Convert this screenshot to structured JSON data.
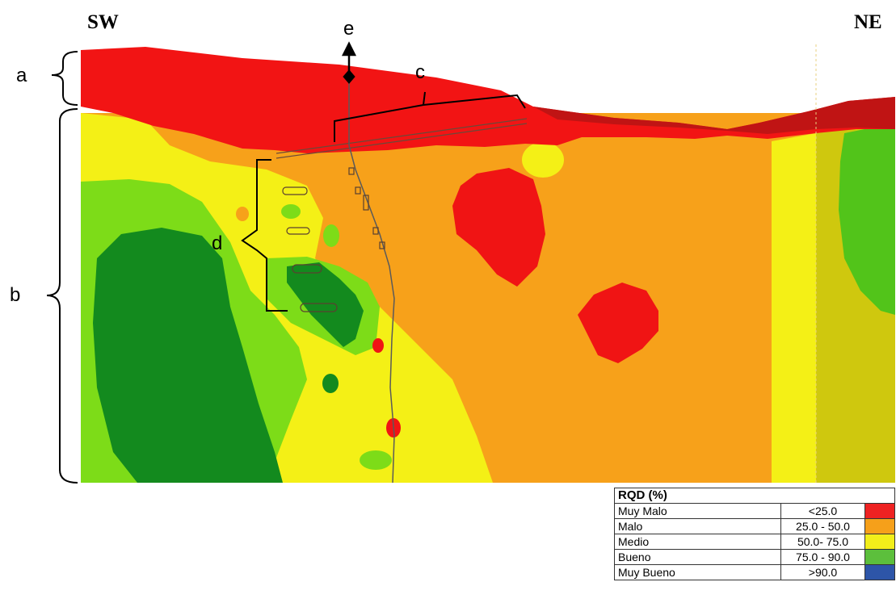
{
  "orientation": {
    "left": "SW",
    "right": "NE"
  },
  "labels": {
    "a": "a",
    "b": "b",
    "c": "c",
    "d": "d",
    "e": "e"
  },
  "legend": {
    "title": "RQD (%)",
    "rows": [
      {
        "class": "Muy Malo",
        "range": "<25.0",
        "color": "#ee2222"
      },
      {
        "class": "Malo",
        "range": "25.0 - 50.0",
        "color": "#f6a01a"
      },
      {
        "class": "Medio",
        "range": "50.0- 75.0",
        "color": "#f2ee1a"
      },
      {
        "class": "Bueno",
        "range": "75.0 - 90.0",
        "color": "#5cbf3c"
      },
      {
        "class": "Muy Bueno",
        "range": ">90.0",
        "color": "#2d55a8"
      }
    ]
  },
  "colors": {
    "muy_malo": "#f01414",
    "malo": "#f7a11a",
    "medio": "#f4f016",
    "bueno": "#7ddc18",
    "muy_bueno": "#138a1e",
    "topsoil": "#f21414",
    "topsoil_dark": "#c01414",
    "ne_zone": "#cfc80e",
    "ne_green": "#52c41a"
  }
}
